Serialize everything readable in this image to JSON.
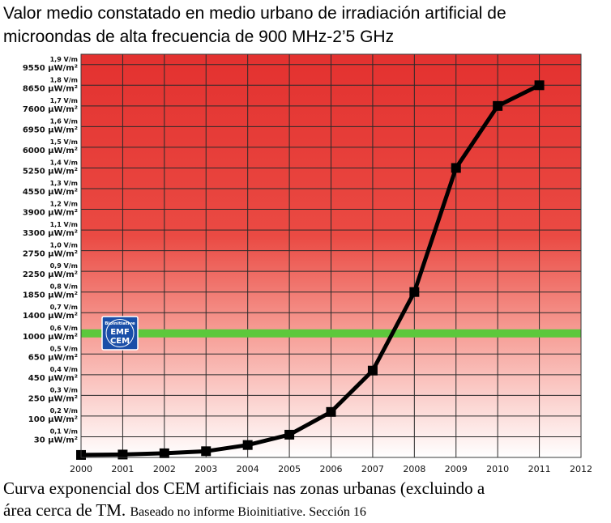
{
  "title": {
    "line1": "Valor medio constatado en medio urbano de irradiación artificial de",
    "line2": "microondas de alta frecuencia de 900 MHz-2’5 GHz"
  },
  "caption": {
    "main_line1": "Curva exponencial dos CEM artificiais nas zonas urbanas (excluindo a",
    "main_line2": "área cerca de TM.",
    "note": "Baseado no informe Bioinitiative. Sección 16"
  },
  "badge": {
    "ring_text": "Bioinitiative",
    "line1": "EMF",
    "line2": "CEM",
    "color": "#1a4fa8"
  },
  "chart_data": {
    "type": "line",
    "x": [
      2000,
      2001,
      2002,
      2003,
      2004,
      2005,
      2006,
      2007,
      2008,
      2009,
      2010,
      2011
    ],
    "series": [
      {
        "values": [
          0.012,
          0.014,
          0.02,
          0.03,
          0.06,
          0.11,
          0.22,
          0.42,
          0.8,
          1.4,
          1.7,
          1.8
        ]
      }
    ],
    "xlim": [
      2000,
      2012
    ],
    "ylim": [
      0,
      1.95
    ],
    "grid": true,
    "x_ticks": [
      "2000",
      "2001",
      "2002",
      "2003",
      "2004",
      "2005",
      "2006",
      "2007",
      "2008",
      "2009",
      "2010",
      "2011",
      "2012"
    ],
    "y_ticks": [
      {
        "y": 0.1,
        "vm": "0,1 V/m",
        "uw": "30 μW/m²"
      },
      {
        "y": 0.2,
        "vm": "0,2 V/m",
        "uw": "100 μW/m²"
      },
      {
        "y": 0.3,
        "vm": "0,3 V/m",
        "uw": "250 μW/m²"
      },
      {
        "y": 0.4,
        "vm": "0,4 V/m",
        "uw": "450 μW/m²"
      },
      {
        "y": 0.5,
        "vm": "0,5 V/m",
        "uw": "650 μW/m²"
      },
      {
        "y": 0.6,
        "vm": "0,6 V/m",
        "uw": "1000 μW/m²"
      },
      {
        "y": 0.7,
        "vm": "0,7 V/m",
        "uw": "1400 μW/m²"
      },
      {
        "y": 0.8,
        "vm": "0,8 V/m",
        "uw": "1850 μW/m²"
      },
      {
        "y": 0.9,
        "vm": "0,9 V/m",
        "uw": "2250 μW/m²"
      },
      {
        "y": 1.0,
        "vm": "1,0 V/m",
        "uw": "2750 μW/m²"
      },
      {
        "y": 1.1,
        "vm": "1,1 V/m",
        "uw": "3300 μW/m²"
      },
      {
        "y": 1.2,
        "vm": "1,2 V/m",
        "uw": "3900 μW/m²"
      },
      {
        "y": 1.3,
        "vm": "1,3 V/m",
        "uw": "4550 μW/m²"
      },
      {
        "y": 1.4,
        "vm": "1,4 V/m",
        "uw": "5250 μW/m²"
      },
      {
        "y": 1.5,
        "vm": "1,5 V/m",
        "uw": "6000 μW/m²"
      },
      {
        "y": 1.6,
        "vm": "1,6 V/m",
        "uw": "6950 μW/m²"
      },
      {
        "y": 1.7,
        "vm": "1,7 V/m",
        "uw": "7600 μW/m²"
      },
      {
        "y": 1.8,
        "vm": "1,8 V/m",
        "uw": "8650 μW/m²"
      },
      {
        "y": 1.9,
        "vm": "1,9 V/m",
        "uw": "9550 μW/m²"
      }
    ],
    "threshold_line": {
      "y": 0.6,
      "color": "#5cc83c"
    },
    "colors": {
      "top": "#e3312f",
      "mid": "#f26a60",
      "bottom": "#ffffff",
      "line": "#000000",
      "grid": "#2a2a2a",
      "frame": "#3a3a3a"
    }
  }
}
